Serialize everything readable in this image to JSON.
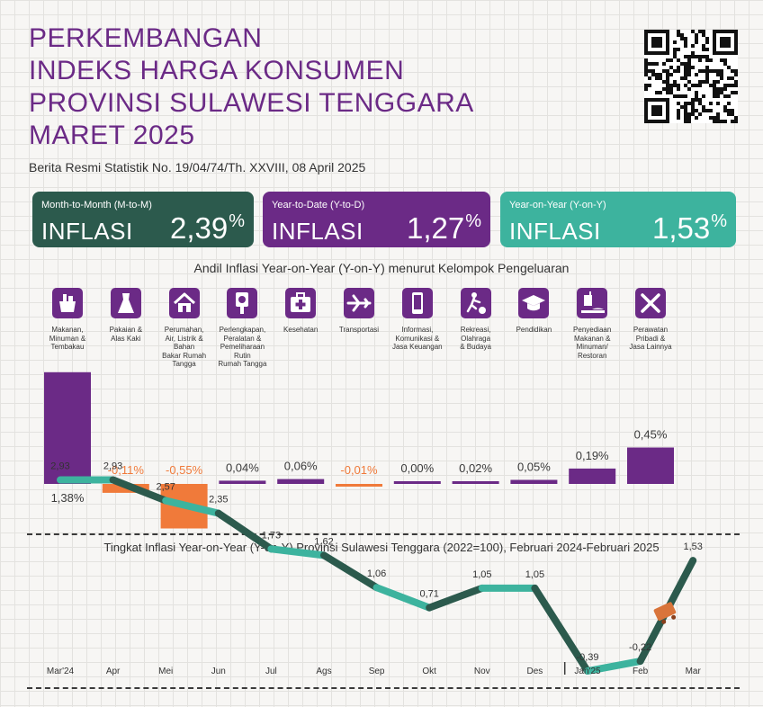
{
  "header": {
    "title_lines": [
      "PERKEMBANGAN",
      "INDEKS HARGA KONSUMEN",
      "PROVINSI SULAWESI TENGGARA",
      "MARET 2025"
    ],
    "subtitle": "Berita Resmi Statistik No. 19/04/74/Th. XXVIII, 08 April 2025"
  },
  "qr_code": {
    "icon": "qr-code"
  },
  "cards": [
    {
      "label": "Month-to-Month (M-to-M)",
      "keyword": "INFLASI",
      "value": "2,39",
      "unit": "%",
      "color": "#2c5a4d"
    },
    {
      "label": "Year-to-Date (Y-to-D)",
      "keyword": "INFLASI",
      "value": "1,27",
      "unit": "%",
      "color": "#6b2a86"
    },
    {
      "label": "Year-on-Year (Y-on-Y)",
      "keyword": "INFLASI",
      "value": "1,53",
      "unit": "%",
      "color": "#3db39e"
    }
  ],
  "colors": {
    "purple": "#6b2a86",
    "orange": "#f07a3a",
    "green_dark": "#2c5a4d",
    "teal": "#3db39e"
  },
  "chart_data": [
    {
      "type": "bar",
      "title": "Andil Inflasi Year-on-Year (Y-on-Y) menurut Kelompok Pengeluaran",
      "categories": [
        "Makanan,\nMinuman &\nTembakau",
        "Pakaian &\nAlas Kaki",
        "Perumahan,\nAir, Listrik &\nBahan\nBakar Rumah\nTangga",
        "Perlengkapan,\nPeralatan &\nPemeliharaan\nRutin\nRumah Tangga",
        "Kesehatan",
        "Transportasi",
        "Informasi,\nKomunikasi &\nJasa Keuangan",
        "Rekreasi,\nOlahraga\n& Budaya",
        "Pendidikan",
        "Penyediaan\nMakanan &\nMinuman/\nRestoran",
        "Perawatan\nPribadi &\nJasa Lainnya"
      ],
      "icons": [
        "food-basket",
        "dress",
        "house",
        "appliance",
        "medical-kit",
        "airplane",
        "smartphone",
        "sport",
        "graduation-cap",
        "food-drink",
        "tools"
      ],
      "values": [
        1.38,
        -0.11,
        -0.55,
        0.04,
        0.06,
        -0.01,
        0.0,
        0.02,
        0.05,
        0.19,
        0.45
      ],
      "labels": [
        "1,38%",
        "-0,11%",
        "-0,55%",
        "0,04%",
        "0,06%",
        "-0,01%",
        "0,00%",
        "0,02%",
        "0,05%",
        "0,19%",
        "0,45%"
      ],
      "ylim": [
        -0.55,
        1.38
      ]
    },
    {
      "type": "line",
      "title": "Tingkat Inflasi Year-on-Year (Y-on-Y) Provinsi Sulawesi Tenggara (2022=100), Februari 2024-Februari 2025",
      "x": [
        "Mar'24",
        "Apr",
        "Mei",
        "Jun",
        "Jul",
        "Ags",
        "Sep",
        "Okt",
        "Nov",
        "Des",
        "Jan'25",
        "Feb",
        "Mar"
      ],
      "y": [
        2.93,
        2.93,
        2.57,
        2.35,
        1.73,
        1.62,
        1.06,
        0.71,
        1.05,
        1.05,
        -0.39,
        -0.22,
        1.53
      ],
      "labels": [
        "2,93",
        "2,93",
        "2,57",
        "2,35",
        "1,73",
        "1,62",
        "1,06",
        "0,71",
        "1,05",
        "1,05",
        "-0,39",
        "-0,22",
        "1,53"
      ],
      "ylim": [
        -0.39,
        2.93
      ]
    }
  ]
}
